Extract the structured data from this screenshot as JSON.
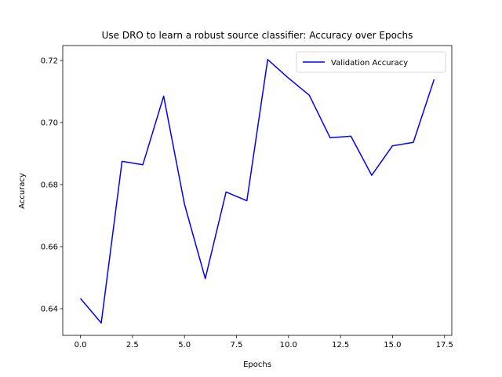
{
  "chart_data": {
    "type": "line",
    "title": "Use DRO to learn a robust source classifier: Accuracy over Epochs",
    "xlabel": "Epochs",
    "ylabel": "Accuracy",
    "xlim": [
      -0.85,
      17.85
    ],
    "ylim": [
      0.6314,
      0.7248
    ],
    "xticks": [
      0.0,
      2.5,
      5.0,
      7.5,
      10.0,
      12.5,
      15.0,
      17.5
    ],
    "xtick_labels": [
      "0.0",
      "2.5",
      "5.0",
      "7.5",
      "10.0",
      "12.5",
      "15.0",
      "17.5"
    ],
    "yticks": [
      0.64,
      0.66,
      0.68,
      0.7,
      0.72
    ],
    "ytick_labels": [
      "0.64",
      "0.66",
      "0.68",
      "0.70",
      "0.72"
    ],
    "grid": false,
    "legend_position": "top-right",
    "series": [
      {
        "name": "Validation Accuracy",
        "color": "#0000ff",
        "x": [
          0,
          1,
          2,
          3,
          4,
          5,
          6,
          7,
          8,
          9,
          10,
          11,
          12,
          13,
          14,
          15,
          16,
          17
        ],
        "values": [
          0.6433,
          0.6354,
          0.6875,
          0.6864,
          0.7085,
          0.6737,
          0.6497,
          0.6776,
          0.6748,
          0.7203,
          0.7143,
          0.7088,
          0.6951,
          0.6956,
          0.683,
          0.6925,
          0.6936,
          0.7139
        ]
      }
    ]
  }
}
